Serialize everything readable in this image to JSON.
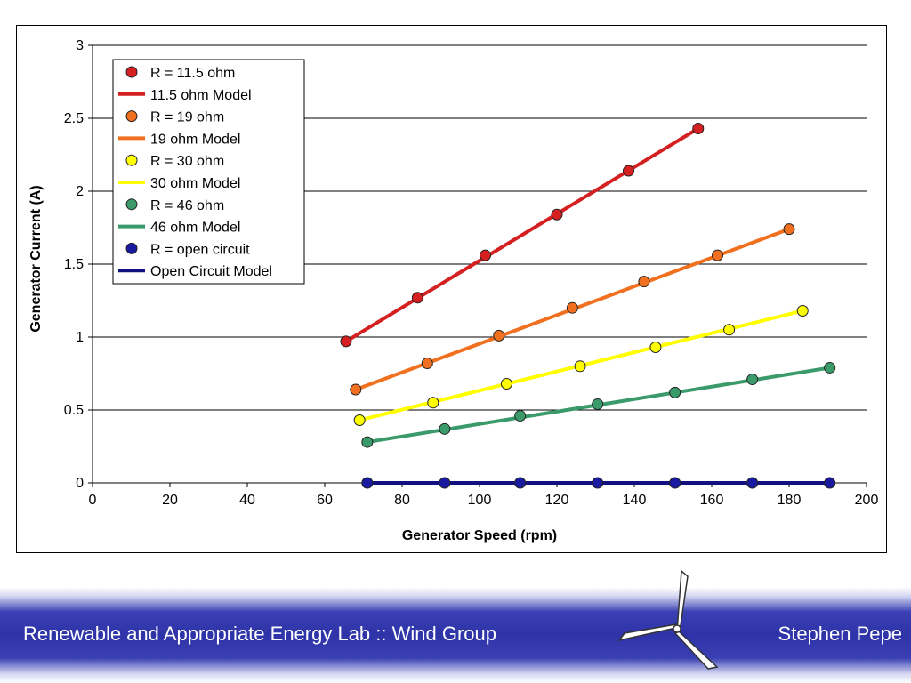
{
  "chart_data": {
    "type": "scatter",
    "xlabel": "Generator Speed (rpm)",
    "ylabel": "Generator Current (A)",
    "xlim": [
      0,
      200
    ],
    "ylim": [
      0,
      3
    ],
    "x_ticks": [
      "0",
      "20",
      "40",
      "60",
      "80",
      "100",
      "120",
      "140",
      "160",
      "180",
      "200"
    ],
    "y_ticks": [
      "0",
      "0.5",
      "1",
      "1.5",
      "2",
      "2.5",
      "3"
    ],
    "grid": "horizontal",
    "legend_position": "top-left",
    "series": [
      {
        "name": "R = 11.5 ohm",
        "kind": "markers",
        "color": "#d42020",
        "x": [
          65.5,
          84,
          101.5,
          120,
          138.5,
          156.5
        ],
        "y": [
          0.97,
          1.27,
          1.56,
          1.84,
          2.14,
          2.43
        ]
      },
      {
        "name": "11.5 ohm Model",
        "kind": "line",
        "color": "#d42020",
        "x": [
          65.5,
          156.5
        ],
        "y": [
          0.97,
          2.43
        ]
      },
      {
        "name": "R = 19 ohm",
        "kind": "markers",
        "color": "#f07020",
        "x": [
          68,
          86.5,
          105,
          124,
          142.5,
          161.5,
          180
        ],
        "y": [
          0.64,
          0.82,
          1.01,
          1.2,
          1.38,
          1.56,
          1.74
        ]
      },
      {
        "name": "19 ohm Model",
        "kind": "line",
        "color": "#f07020",
        "x": [
          68,
          180
        ],
        "y": [
          0.64,
          1.74
        ]
      },
      {
        "name": "R = 30 ohm",
        "kind": "markers",
        "color": "#ffff00",
        "x": [
          69,
          88,
          107,
          126,
          145.5,
          164.5,
          183.5
        ],
        "y": [
          0.43,
          0.55,
          0.68,
          0.8,
          0.93,
          1.05,
          1.18
        ]
      },
      {
        "name": "30 ohm Model",
        "kind": "line",
        "color": "#ffff00",
        "x": [
          69,
          183.5
        ],
        "y": [
          0.43,
          1.18
        ]
      },
      {
        "name": "R = 46 ohm",
        "kind": "markers",
        "color": "#3a9a6a",
        "x": [
          71,
          91,
          110.5,
          130.5,
          150.5,
          170.5,
          190.5
        ],
        "y": [
          0.28,
          0.37,
          0.46,
          0.54,
          0.62,
          0.71,
          0.79
        ]
      },
      {
        "name": "46 ohm Model",
        "kind": "line",
        "color": "#3a9a6a",
        "x": [
          71,
          190.5
        ],
        "y": [
          0.28,
          0.79
        ]
      },
      {
        "name": "R = open circuit",
        "kind": "markers",
        "color": "#1a1aa0",
        "x": [
          71,
          91,
          110.5,
          130.5,
          150.5,
          170.5,
          190.5
        ],
        "y": [
          0,
          0,
          0,
          0,
          0,
          0,
          0
        ]
      },
      {
        "name": "Open Circuit Model",
        "kind": "line",
        "color": "#101080",
        "x": [
          71,
          190.5
        ],
        "y": [
          0,
          0
        ]
      }
    ]
  },
  "footer": {
    "left_text": "Renewable and Appropriate Energy Lab :: Wind Group",
    "right_text": "Stephen Pepe"
  },
  "icons": {
    "turbine": "wind-turbine-icon"
  }
}
